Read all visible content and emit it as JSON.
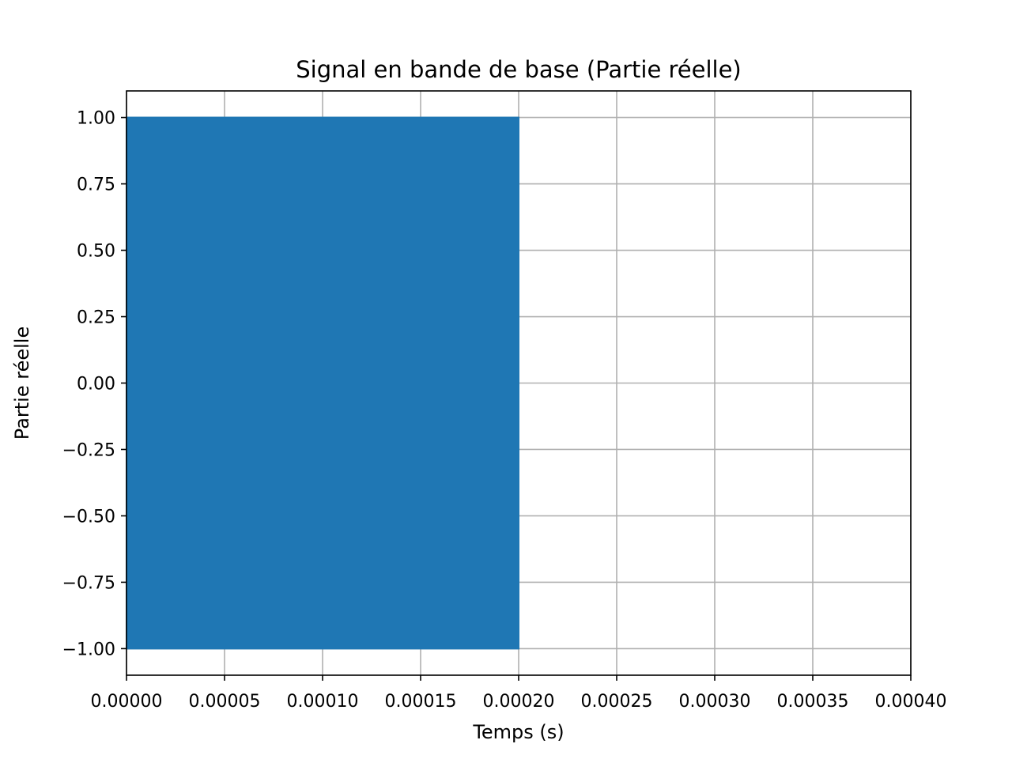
{
  "chart_data": {
    "type": "line",
    "title": "Signal en bande de base (Partie réelle)",
    "xlabel": "Temps (s)",
    "ylabel": "Partie réelle",
    "xlim": [
      0,
      0.0004
    ],
    "ylim": [
      -1.1,
      1.1
    ],
    "grid": true,
    "x_ticks": [
      0,
      5e-05,
      0.0001,
      0.00015,
      0.0002,
      0.00025,
      0.0003,
      0.00035,
      0.0004
    ],
    "x_tick_labels": [
      "0.00000",
      "0.00005",
      "0.00010",
      "0.00015",
      "0.00020",
      "0.00025",
      "0.00030",
      "0.00035",
      "0.00040"
    ],
    "y_ticks": [
      -1.0,
      -0.75,
      -0.5,
      -0.25,
      0.0,
      0.25,
      0.5,
      0.75,
      1.0
    ],
    "y_tick_labels": [
      "−1.00",
      "−0.75",
      "−0.50",
      "−0.25",
      "0.00",
      "0.25",
      "0.50",
      "0.75",
      "1.00"
    ],
    "series": [
      {
        "color": "#1f77b4",
        "description": "rapidly oscillating signal between -1 and 1",
        "x_range": [
          0,
          0.0002
        ],
        "y_min": -1.0,
        "y_max": 1.0
      }
    ]
  }
}
